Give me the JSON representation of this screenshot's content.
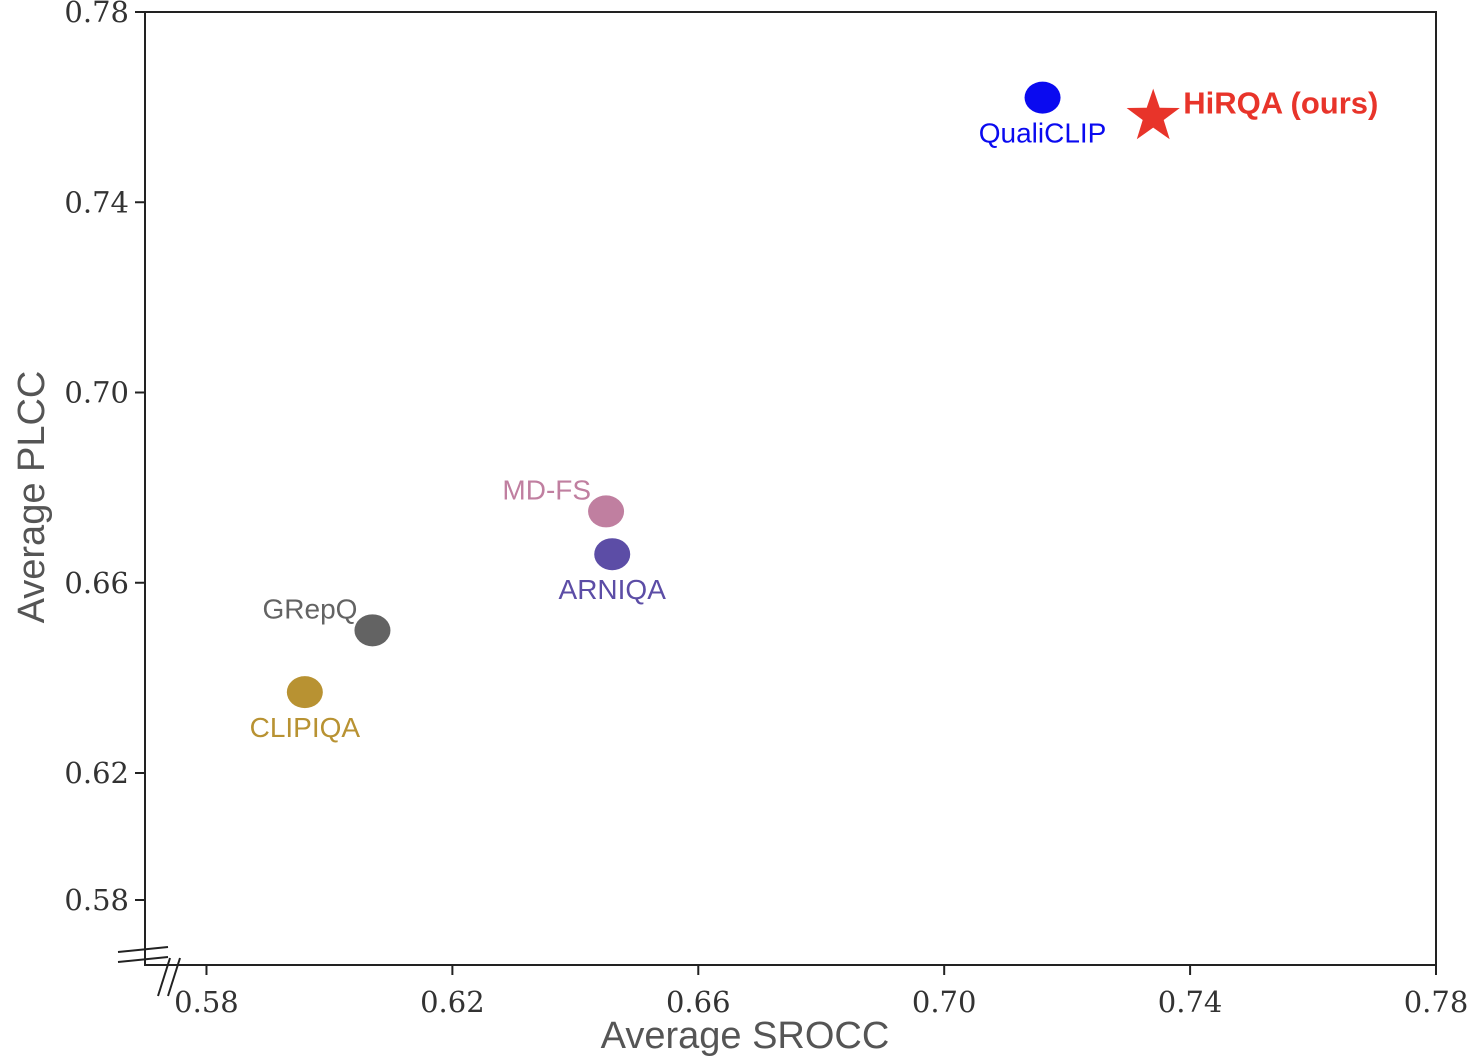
{
  "chart_data": {
    "type": "scatter",
    "title": "",
    "xlabel": "Average SROCC",
    "ylabel": "Average PLCC",
    "x_ticks": [
      "0.58",
      "0.62",
      "0.66",
      "0.70",
      "0.74",
      "0.78"
    ],
    "y_ticks": [
      "0.58",
      "0.62",
      "0.66",
      "0.70",
      "0.74",
      "0.78"
    ],
    "grid": false,
    "axis_break": true,
    "points": [
      {
        "name": "HiRQA (ours)",
        "x": 0.734,
        "y": 0.758,
        "marker": "star",
        "color": "#e8342a",
        "label_pos": "right",
        "bold": true
      },
      {
        "name": "QualiCLIP",
        "x": 0.716,
        "y": 0.762,
        "marker": "circle",
        "color": "#0a0af0",
        "label_pos": "below",
        "bold": false
      },
      {
        "name": "MD-FS",
        "x": 0.645,
        "y": 0.675,
        "marker": "circle",
        "color": "#c07fa0",
        "label_pos": "left",
        "bold": false
      },
      {
        "name": "ARNIQA",
        "x": 0.646,
        "y": 0.666,
        "marker": "circle",
        "color": "#5c4da6",
        "label_pos": "below",
        "bold": false
      },
      {
        "name": "GRepQ",
        "x": 0.607,
        "y": 0.65,
        "marker": "circle",
        "color": "#636363",
        "label_pos": "left",
        "bold": false
      },
      {
        "name": "CLIPIQA",
        "x": 0.596,
        "y": 0.637,
        "marker": "circle",
        "color": "#b89232",
        "label_pos": "below",
        "bold": false
      }
    ]
  }
}
